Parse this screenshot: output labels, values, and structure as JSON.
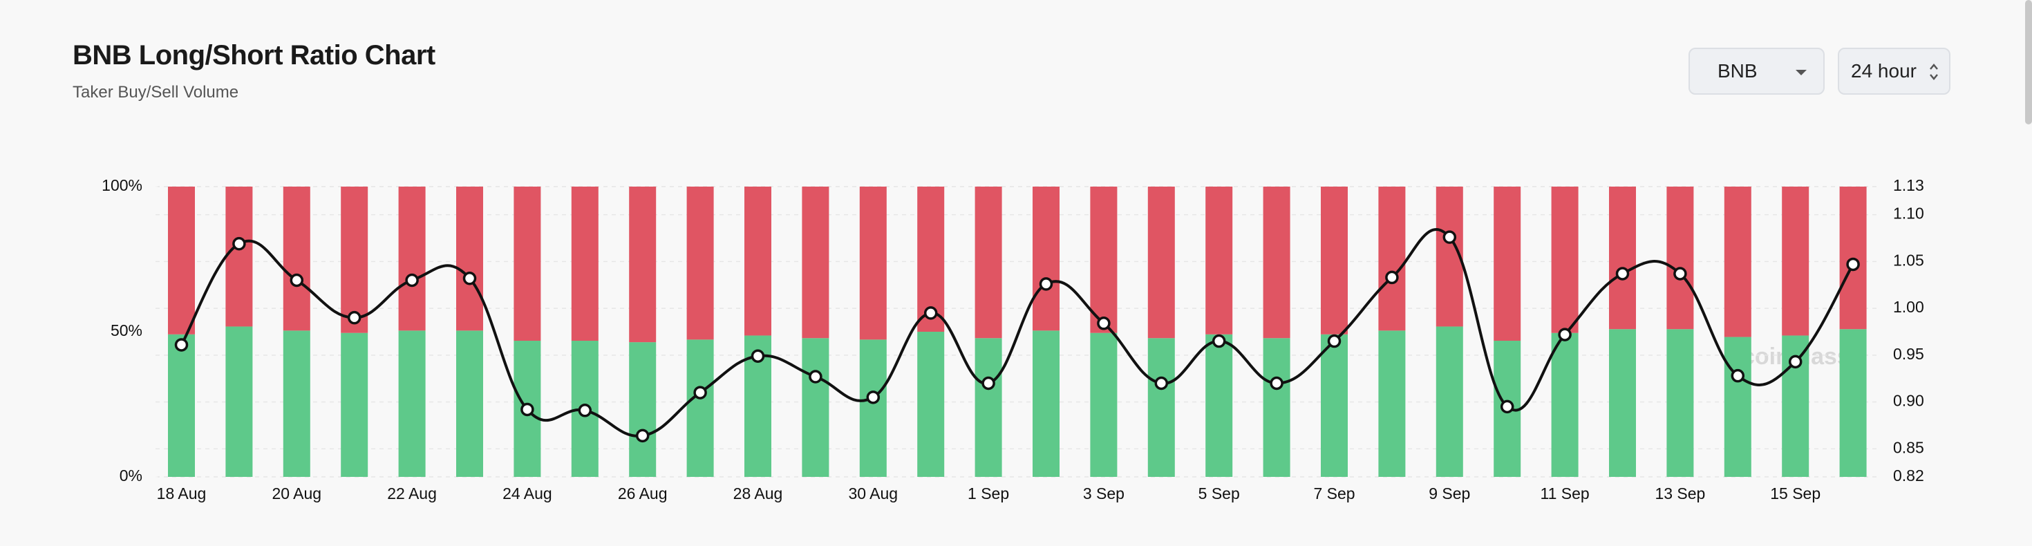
{
  "header": {
    "title": "BNB Long/Short Ratio Chart",
    "subtitle": "Taker Buy/Sell Volume"
  },
  "controls": {
    "symbol": "BNB",
    "interval": "24 hour"
  },
  "watermark": "coinglass",
  "chart_data": {
    "type": "bar",
    "stacked": true,
    "categories": [
      "18 Aug",
      null,
      "20 Aug",
      null,
      "22 Aug",
      null,
      "24 Aug",
      null,
      "26 Aug",
      null,
      "28 Aug",
      null,
      "30 Aug",
      null,
      "1 Sep",
      null,
      "3 Sep",
      null,
      "5 Sep",
      null,
      "7 Sep",
      null,
      "9 Sep",
      null,
      "11 Sep",
      null,
      "13 Sep",
      null,
      "15 Sep",
      null
    ],
    "series": [
      {
        "color": "#5ec98a",
        "values": [
          49.1,
          51.8,
          50.4,
          49.6,
          50.4,
          50.4,
          46.9,
          46.9,
          46.4,
          47.3,
          48.7,
          47.8,
          47.3,
          50,
          47.8,
          50.4,
          49.6,
          47.8,
          49.1,
          47.8,
          49.1,
          50.4,
          51.8,
          46.9,
          49.6,
          50.9,
          50.9,
          48.2,
          48.7,
          50.9
        ]
      },
      {
        "color": "#e05563",
        "values": [
          50.9,
          48.2,
          49.6,
          50.4,
          49.6,
          49.6,
          53.1,
          53.1,
          53.6,
          52.7,
          51.3,
          52.2,
          52.7,
          50,
          52.2,
          49.6,
          50.4,
          52.2,
          50.9,
          52.2,
          50.9,
          49.6,
          48.2,
          53.1,
          50.4,
          49.1,
          49.1,
          51.8,
          51.3,
          49.1
        ]
      },
      {
        "type": "line",
        "axis": "y2",
        "color": "#111111",
        "values": [
          0.961,
          1.069,
          1.03,
          0.99,
          1.03,
          1.032,
          0.892,
          0.891,
          0.864,
          0.91,
          0.949,
          0.927,
          0.905,
          0.995,
          0.92,
          1.026,
          0.984,
          0.92,
          0.965,
          0.92,
          0.965,
          1.033,
          1.076,
          0.895,
          0.972,
          1.037,
          1.037,
          0.928,
          0.943,
          1.047
        ]
      }
    ],
    "ylim": [
      0,
      100
    ],
    "yticks": [
      {
        "value": 0,
        "label": "0%"
      },
      {
        "value": 50,
        "label": "50%"
      },
      {
        "value": 100,
        "label": "100%"
      }
    ],
    "y2lim": [
      0.82,
      1.13
    ],
    "y2ticks": [
      0.82,
      0.85,
      {
        "value": 0.9,
        "label": "0.90"
      },
      0.95,
      {
        "value": 1,
        "label": "1.00"
      },
      1.05,
      {
        "value": 1.1,
        "label": "1.10"
      },
      1.13
    ],
    "grid": true
  }
}
